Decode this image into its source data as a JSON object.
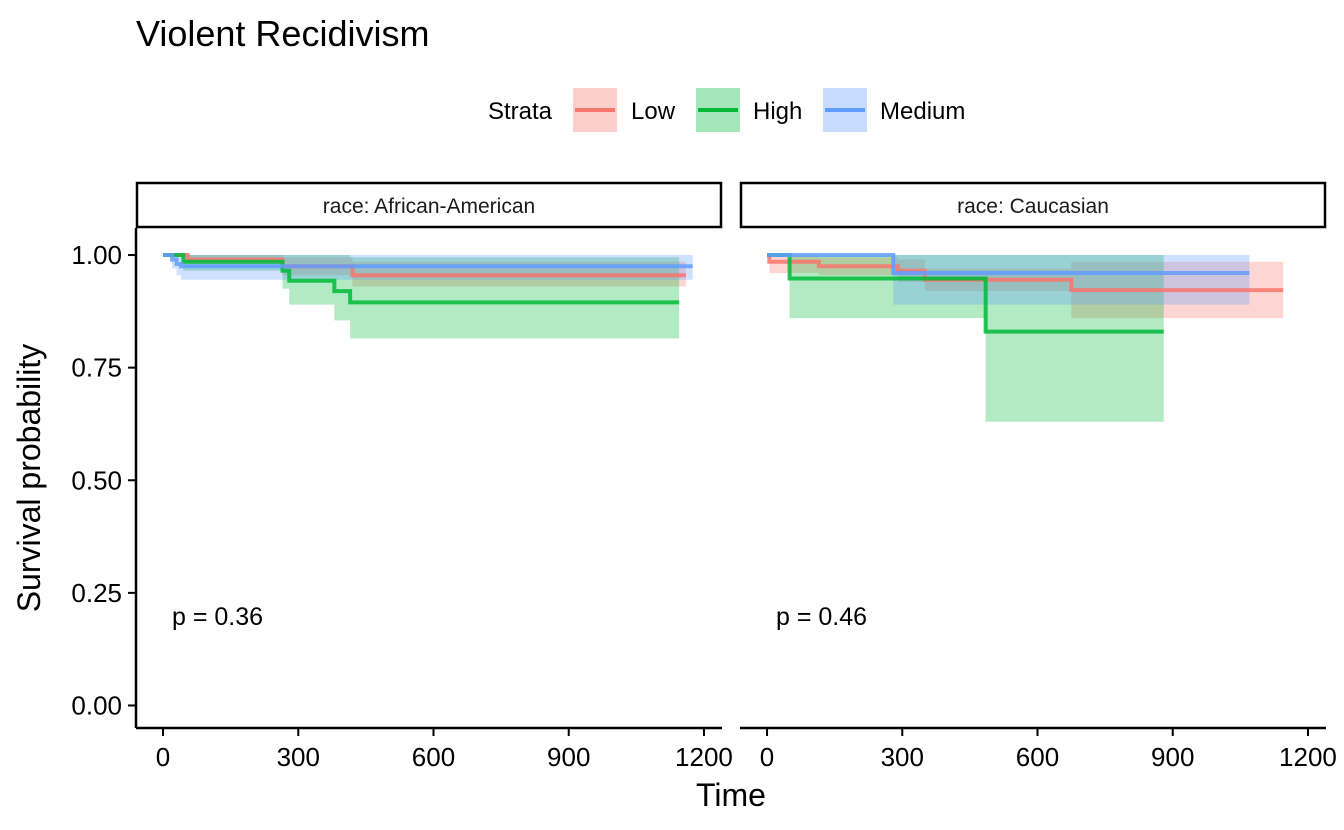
{
  "chart_data": {
    "type": "line",
    "subtype": "kaplan-meier survival curves with confidence bands, faceted",
    "title": "Violent Recidivism",
    "xlabel": "Time",
    "ylabel": "Survival probability",
    "xlim": [
      -60,
      1240
    ],
    "ylim": [
      -0.05,
      1.06
    ],
    "xticks": [
      0,
      300,
      600,
      900,
      1200
    ],
    "yticks": [
      0,
      0.25,
      0.5,
      0.75,
      1.0
    ],
    "xtick_labels": [
      "0",
      "300",
      "600",
      "900",
      "1200"
    ],
    "ytick_labels": [
      "0.00",
      "0.25",
      "0.50",
      "0.75",
      "1.00"
    ],
    "grid": false,
    "legend": {
      "title": "Strata",
      "position": "top",
      "entries": [
        {
          "name": "Low",
          "color": "#F8766D"
        },
        {
          "name": "High",
          "color": "#00BA38"
        },
        {
          "name": "Medium",
          "color": "#619CFF"
        }
      ]
    },
    "panels": [
      {
        "strip": "race: African-American",
        "pvalue": "p = 0.36",
        "series": [
          {
            "name": "Low",
            "color": "#F8766D",
            "x": [
              0,
              55,
              265,
              420,
              1160
            ],
            "y": [
              1.0,
              0.99,
              0.975,
              0.955,
              0.955
            ],
            "lower": [
              1.0,
              0.98,
              0.955,
              0.93,
              0.93
            ],
            "upper": [
              1.0,
              1.0,
              0.995,
              0.985,
              0.985
            ]
          },
          {
            "name": "High",
            "color": "#00BA38",
            "x": [
              0,
              45,
              265,
              280,
              380,
              415,
              1145
            ],
            "y": [
              1.0,
              0.985,
              0.965,
              0.943,
              0.92,
              0.895,
              0.895
            ],
            "lower": [
              1.0,
              0.965,
              0.925,
              0.89,
              0.855,
              0.815,
              0.815
            ],
            "upper": [
              1.0,
              1.0,
              1.0,
              1.0,
              1.0,
              0.995,
              0.995
            ]
          },
          {
            "name": "Medium",
            "color": "#619CFF",
            "x": [
              0,
              20,
              30,
              40,
              1175
            ],
            "y": [
              1.0,
              0.99,
              0.98,
              0.975,
              0.975
            ],
            "lower": [
              1.0,
              0.97,
              0.955,
              0.945,
              0.945
            ],
            "upper": [
              1.0,
              1.0,
              1.0,
              1.0,
              1.0
            ]
          }
        ]
      },
      {
        "strip": "race: Caucasian",
        "pvalue": "p = 0.46",
        "series": [
          {
            "name": "Low",
            "color": "#F8766D",
            "x": [
              0,
              5,
              115,
              290,
              350,
              675,
              1145
            ],
            "y": [
              1.0,
              0.985,
              0.975,
              0.965,
              0.945,
              0.922,
              0.922
            ],
            "lower": [
              1.0,
              0.96,
              0.955,
              0.94,
              0.92,
              0.86,
              0.86
            ],
            "upper": [
              1.0,
              1.0,
              0.995,
              0.99,
              0.97,
              0.985,
              0.985
            ]
          },
          {
            "name": "High",
            "color": "#00BA38",
            "x": [
              0,
              50,
              485,
              880
            ],
            "y": [
              1.0,
              0.948,
              0.83,
              0.83
            ],
            "lower": [
              1.0,
              0.86,
              0.63,
              0.63
            ],
            "upper": [
              1.0,
              1.0,
              1.0,
              1.0
            ]
          },
          {
            "name": "Medium",
            "color": "#619CFF",
            "x": [
              0,
              280,
              1070
            ],
            "y": [
              1.0,
              0.96,
              0.96
            ],
            "lower": [
              1.0,
              0.89,
              0.89
            ],
            "upper": [
              1.0,
              1.0,
              1.0
            ]
          }
        ]
      }
    ]
  }
}
